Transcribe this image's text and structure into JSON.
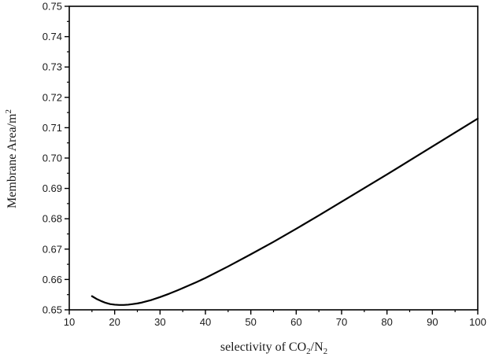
{
  "chart_data": {
    "type": "line",
    "title": "",
    "xlabel": "selectivity of CO₂/N₂",
    "xlabel_parts": {
      "t1": "selectivity of  CO",
      "s1": "2",
      "t2": "/N",
      "s2": "2"
    },
    "ylabel": "Membrane Area/m²",
    "ylabel_parts": {
      "t1": "Membrane Area/m",
      "s1": "2"
    },
    "xlim": [
      10,
      100
    ],
    "ylim": [
      0.65,
      0.75
    ],
    "xticks": [
      10,
      20,
      30,
      40,
      50,
      60,
      70,
      80,
      90,
      100
    ],
    "yticks": [
      "0.65",
      "0.66",
      "0.67",
      "0.68",
      "0.69",
      "0.70",
      "0.71",
      "0.72",
      "0.73",
      "0.74",
      "0.75"
    ],
    "grid": false,
    "legend": "none",
    "line_color": "#000000",
    "series": [
      {
        "x": [
          15,
          16,
          17,
          18,
          19,
          20,
          21,
          22,
          23,
          24,
          25,
          26,
          28,
          30,
          32,
          34,
          36,
          38,
          40,
          45,
          50,
          55,
          60,
          65,
          70,
          75,
          80,
          85,
          90,
          95,
          100
        ],
        "values": [
          0.6545,
          0.6536,
          0.6529,
          0.6523,
          0.6519,
          0.6517,
          0.6516,
          0.6516,
          0.6517,
          0.6519,
          0.6521,
          0.6524,
          0.6532,
          0.6542,
          0.6553,
          0.6565,
          0.6578,
          0.6591,
          0.6605,
          0.6643,
          0.6683,
          0.6724,
          0.6767,
          0.6811,
          0.6856,
          0.6901,
          0.6946,
          0.6992,
          0.7038,
          0.7084,
          0.713
        ]
      }
    ]
  }
}
